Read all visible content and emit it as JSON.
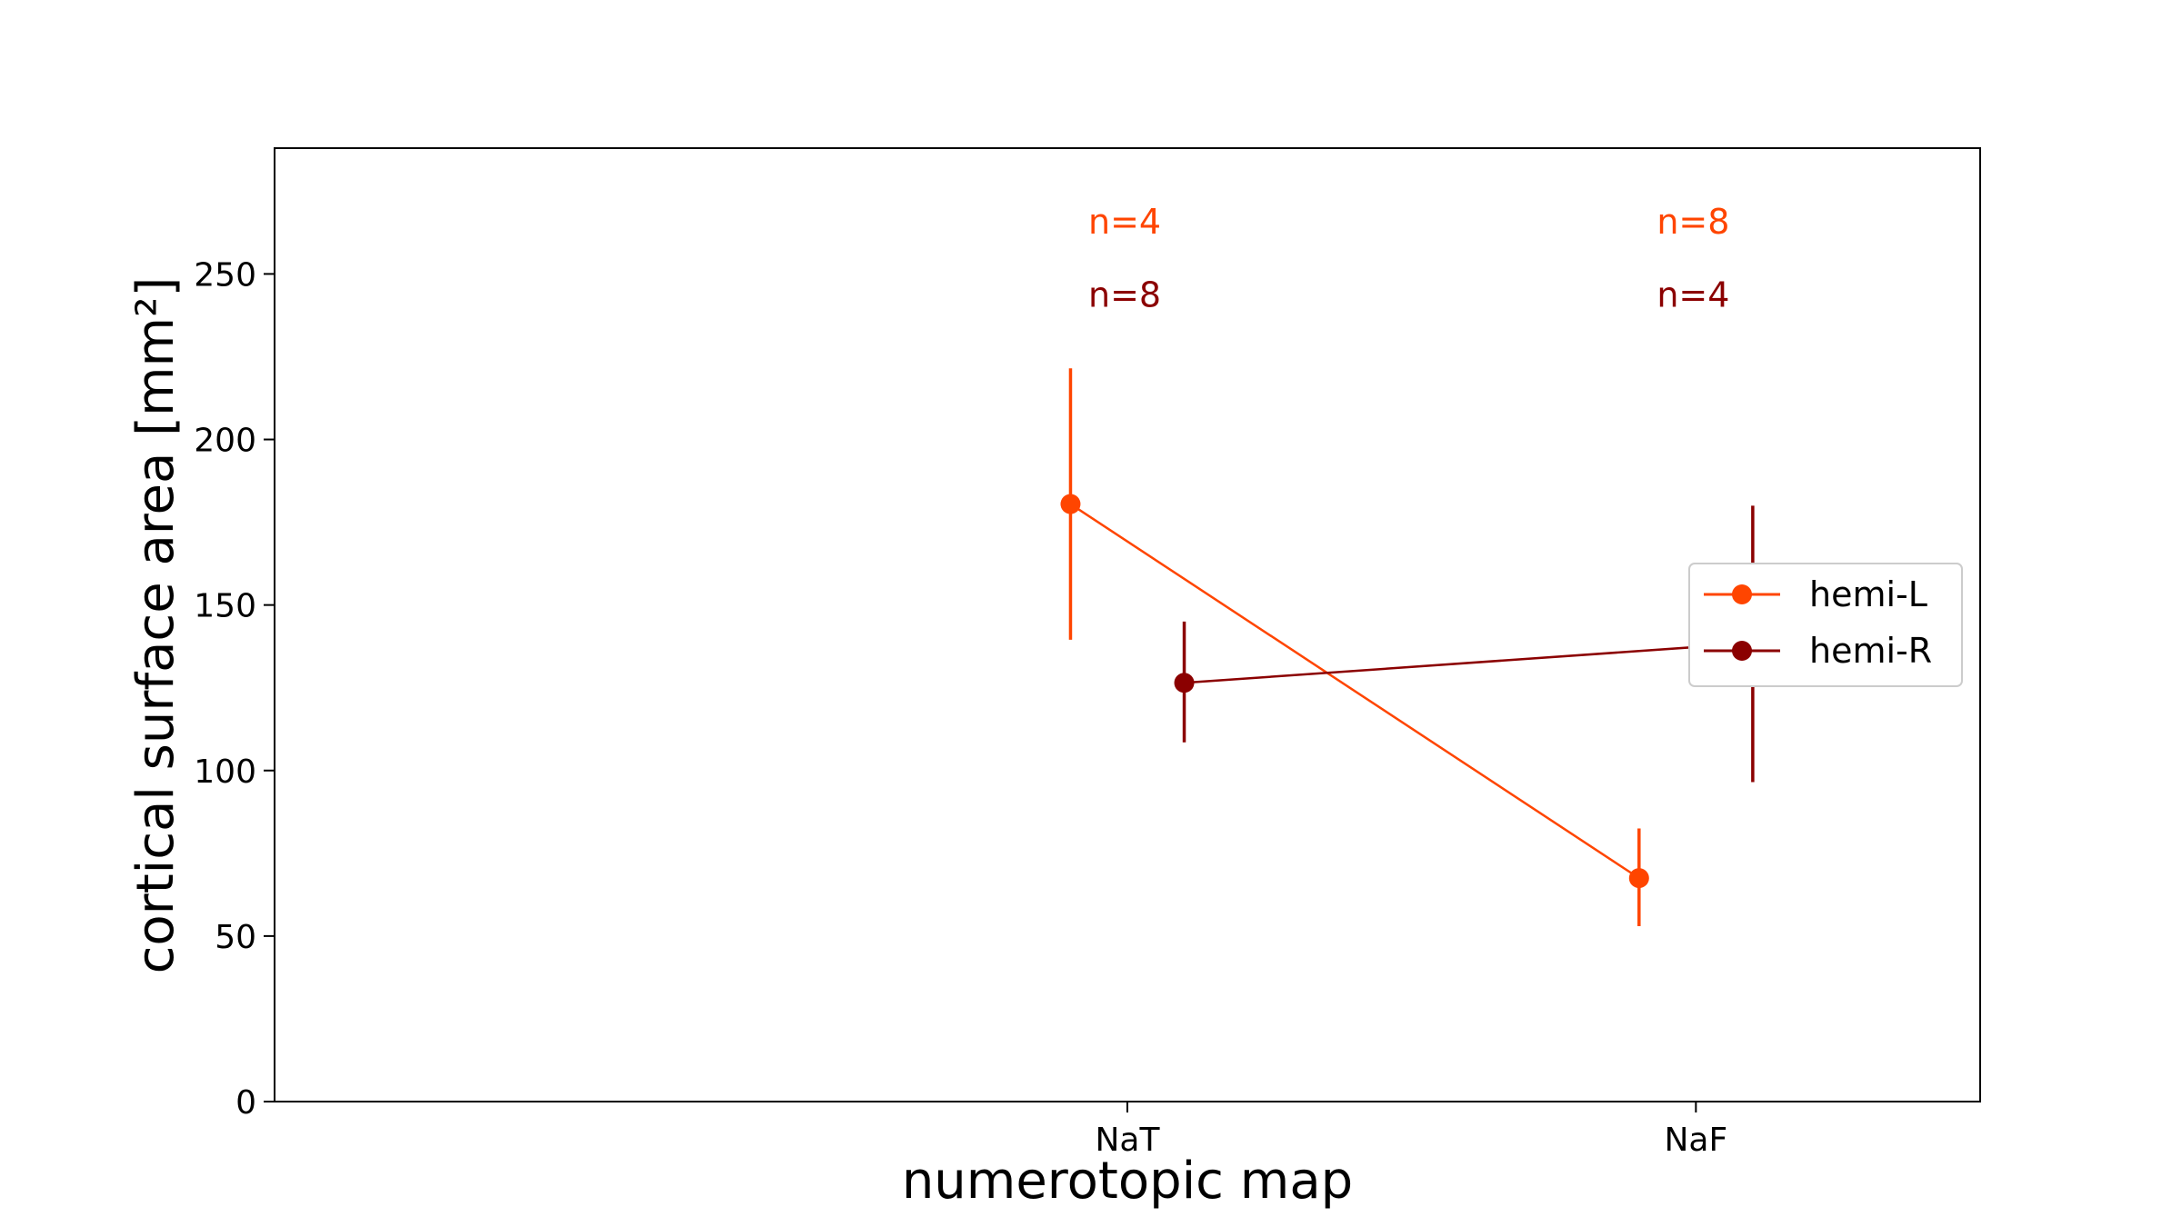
{
  "chart_data": {
    "type": "line",
    "title": "",
    "xlabel": "numerotopic map",
    "ylabel": "cortical surface area [mm²]",
    "categories": [
      "NaT",
      "NaF"
    ],
    "ylim": [
      0,
      288
    ],
    "yticks": [
      0,
      50,
      100,
      150,
      200,
      250
    ],
    "grid": false,
    "legend_position": "right",
    "series": [
      {
        "name": "hemi-L",
        "color": "#ff4500",
        "offset": -0.1,
        "values": [
          180.5,
          67.5
        ],
        "err_low": [
          139.5,
          53
        ],
        "err_high": [
          221.5,
          82.5
        ],
        "n_labels": [
          "n=4",
          "n=8"
        ],
        "n_label_value": 266
      },
      {
        "name": "hemi-R",
        "color": "#8b0000",
        "offset": 0.1,
        "values": [
          126.5,
          138.5
        ],
        "err_low": [
          108.5,
          96.5
        ],
        "err_high": [
          145,
          180
        ],
        "n_labels": [
          "n=8",
          "n=4"
        ],
        "n_label_value": 244
      }
    ]
  }
}
